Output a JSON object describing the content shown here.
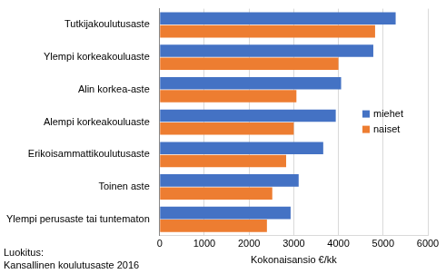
{
  "chart_data": {
    "type": "bar",
    "orientation": "horizontal",
    "categories": [
      "Tutkijakoulutusaste",
      "Ylempi korkeakouluaste",
      "Alin korkea-aste",
      "Alempi korkeakouluaste",
      "Erikoisammattikoulutusaste",
      "Toinen aste",
      "Ylempi perusaste tai tuntematon"
    ],
    "series": [
      {
        "name": "miehet",
        "color": "#4472c4",
        "values": [
          5280,
          4780,
          4060,
          3940,
          3660,
          3110,
          2930
        ]
      },
      {
        "name": "naiset",
        "color": "#ed7d31",
        "values": [
          4820,
          4000,
          3060,
          3000,
          2830,
          2520,
          2400
        ]
      }
    ],
    "x_label": "Kokonaisansio €/kk",
    "xlim": [
      0,
      6000
    ],
    "xticks": [
      0,
      1000,
      2000,
      3000,
      4000,
      5000,
      6000
    ],
    "grid": true,
    "legend": "right",
    "annotations": [
      "Luokitus:",
      "Kansallinen koulutusaste 2016"
    ]
  }
}
